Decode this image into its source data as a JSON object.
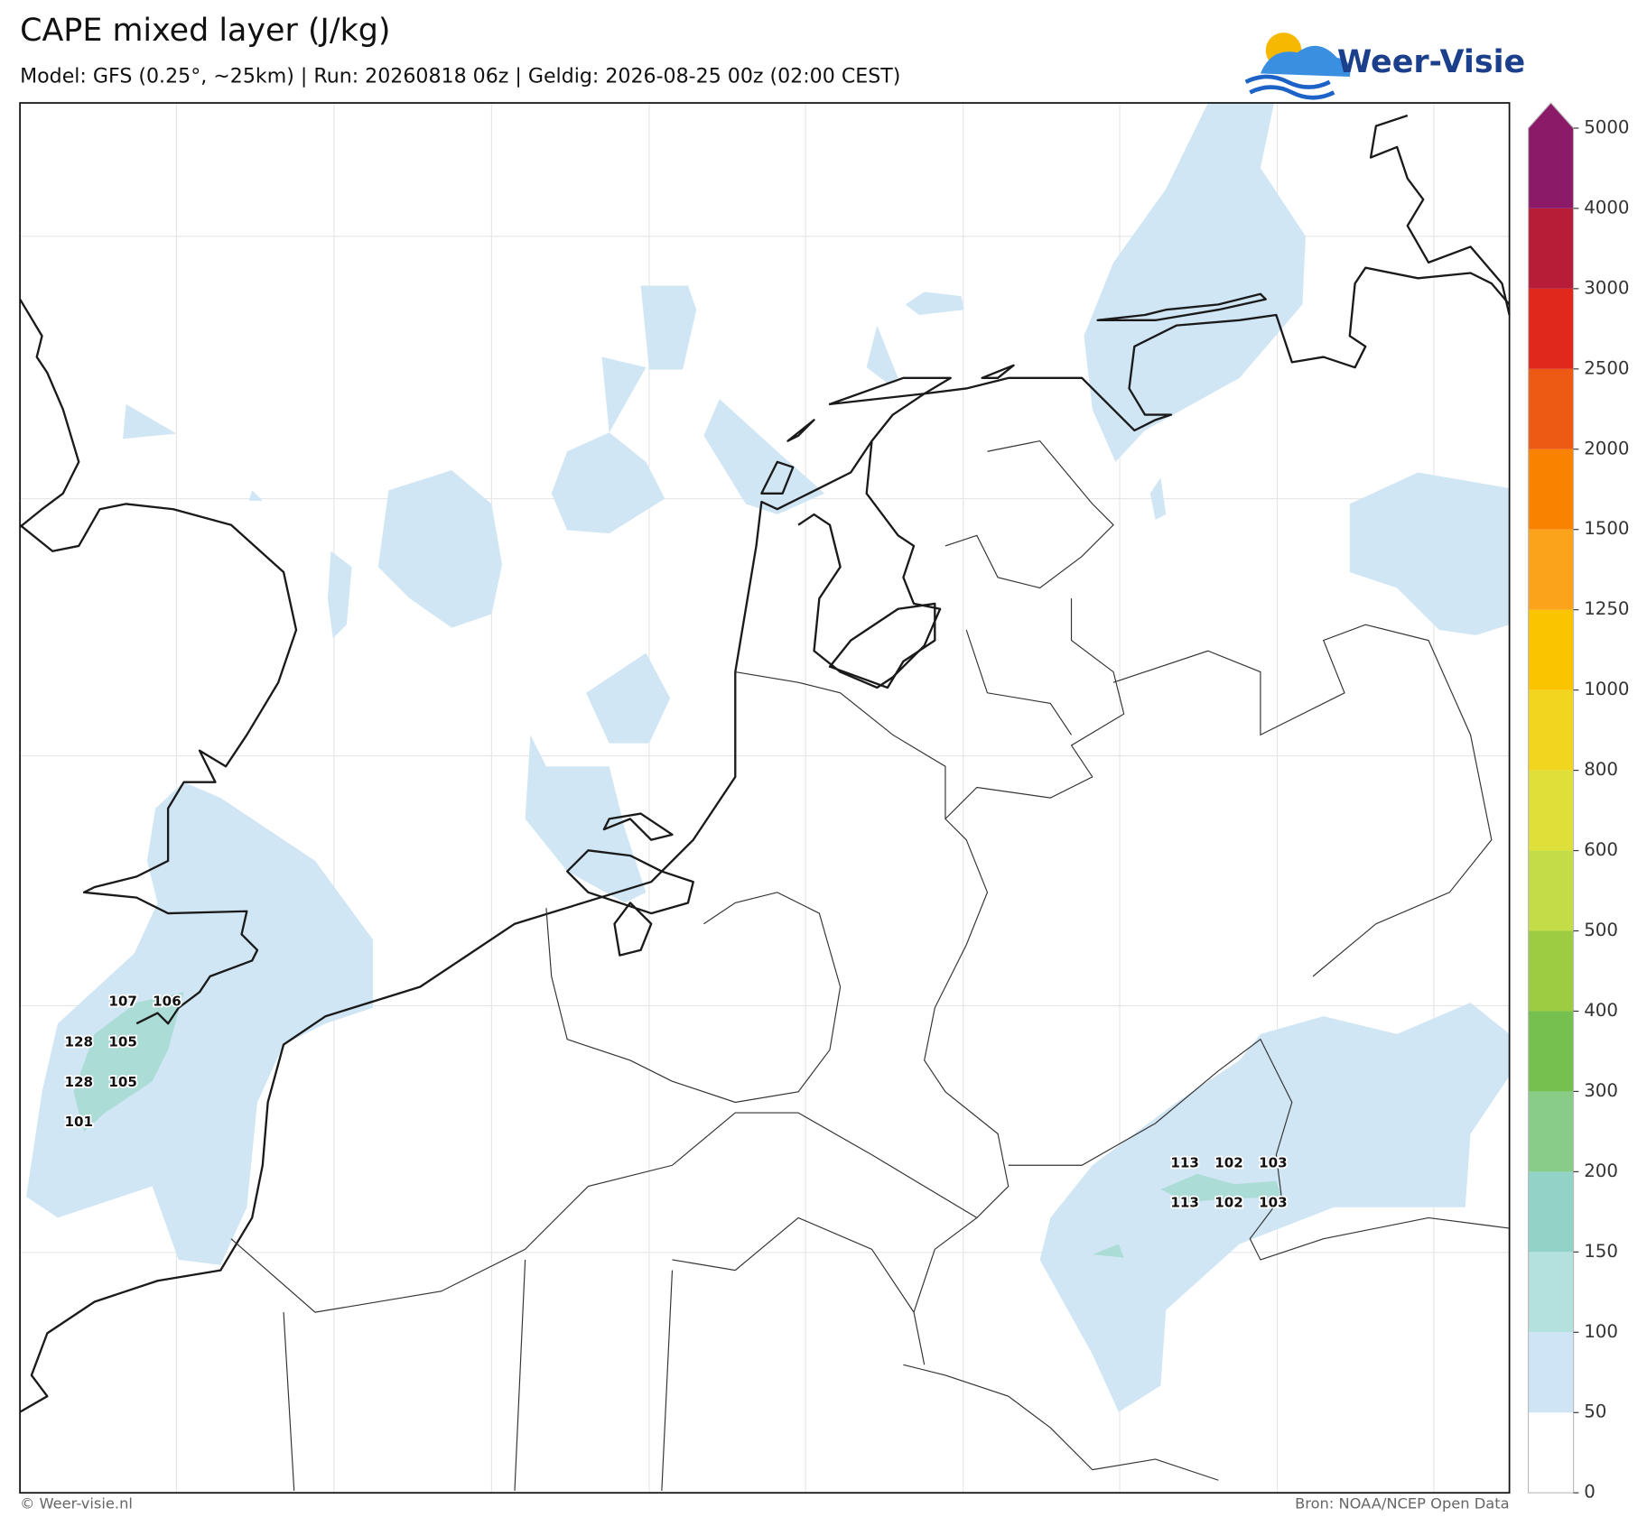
{
  "header": {
    "title": "CAPE mixed layer (J/kg)",
    "subtitle": "Model: GFS (0.25°, ~25km)  |  Run: 20260818 06z  |  Geldig: 2026-08-25 00z (02:00 CEST)",
    "logo": "Weer-Visie"
  },
  "colorbar": {
    "ticks": [
      0,
      50,
      100,
      150,
      200,
      300,
      400,
      500,
      600,
      800,
      1000,
      1250,
      1500,
      2000,
      2500,
      3000,
      4000,
      5000
    ],
    "colors": [
      "#ffffff",
      "#cfe5f5",
      "#b3e1dd",
      "#91d3c6",
      "#88cc88",
      "#76c04f",
      "#9dcc42",
      "#c3dc48",
      "#dfdf3a",
      "#f1d51e",
      "#fbc400",
      "#fba31b",
      "#f98300",
      "#ec5a14",
      "#e0281d",
      "#b81d38",
      "#8b1a68"
    ]
  },
  "point_values": [
    107,
    106,
    128,
    105,
    128,
    105,
    101,
    113,
    102,
    103,
    113,
    102,
    103
  ],
  "footer": {
    "left": "© Weer-visie.nl",
    "right": "Bron: NOAA/NCEP Open Data"
  }
}
